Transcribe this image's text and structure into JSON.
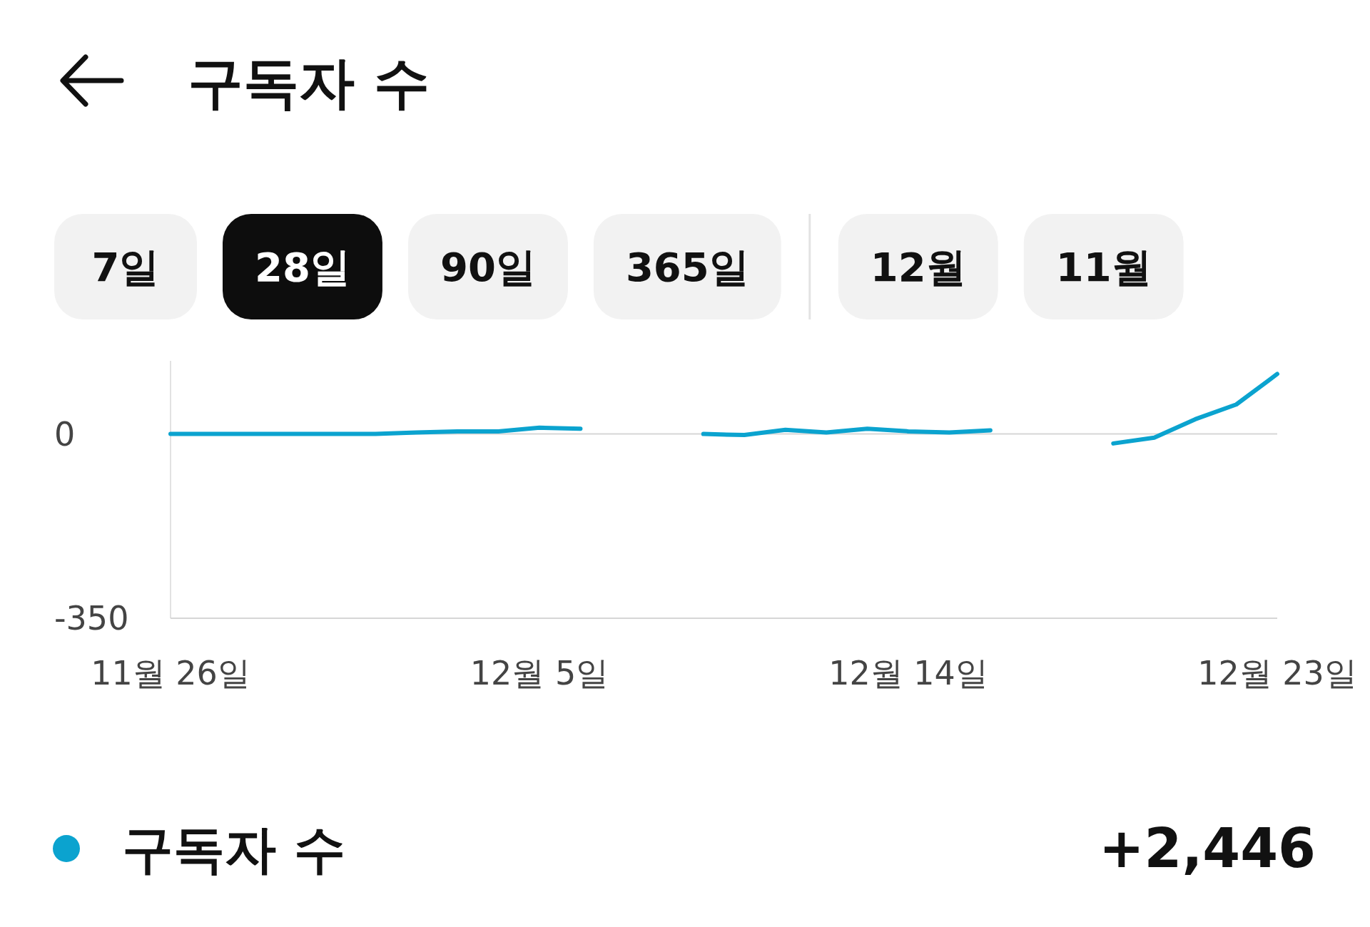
{
  "chart_data": {
    "type": "line",
    "title": "구독자 수",
    "categories": [
      "11월 26일",
      null,
      null,
      null,
      null,
      null,
      null,
      null,
      null,
      "12월 5일",
      null,
      null,
      null,
      null,
      null,
      null,
      null,
      null,
      "12월 14일",
      null,
      null,
      null,
      null,
      null,
      null,
      null,
      null,
      "12월 23일"
    ],
    "series": [
      {
        "name": "구독자 수",
        "color": "#0ba3cf",
        "values": [
          0,
          0,
          0,
          0,
          0,
          0,
          3,
          5,
          5,
          12,
          10,
          null,
          null,
          0,
          -2,
          8,
          3,
          10,
          5,
          3,
          7,
          null,
          null,
          -18,
          -7,
          28,
          56,
          114
        ]
      }
    ],
    "ylim": [
      -350,
      139
    ],
    "yticks": [
      -350,
      0
    ],
    "grid": "y",
    "legend": "bottom left",
    "annotations": [
      "7일",
      "28일",
      "90일",
      "365일",
      "12월",
      "11월",
      "+2,446"
    ]
  }
}
